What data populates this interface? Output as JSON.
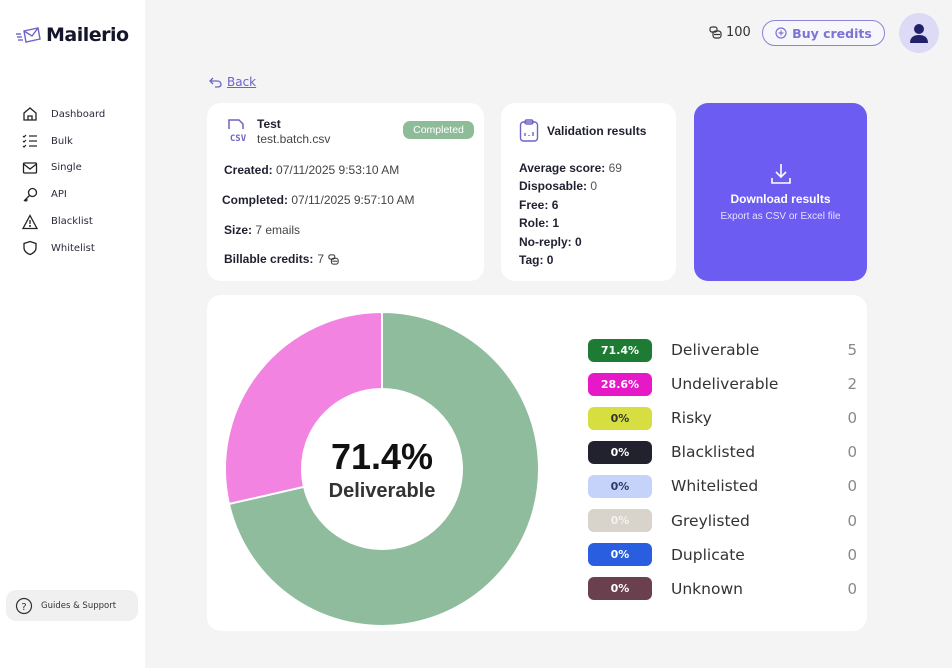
{
  "app": {
    "name": "Mailerio",
    "logo_icon": "envelope-speed-icon"
  },
  "sidebar": {
    "items": [
      {
        "label": "Dashboard",
        "icon": "home-icon"
      },
      {
        "label": "Bulk",
        "icon": "checklist-icon"
      },
      {
        "label": "Single",
        "icon": "mail-icon"
      },
      {
        "label": "API",
        "icon": "key-icon"
      },
      {
        "label": "Blacklist",
        "icon": "warning-icon"
      },
      {
        "label": "Whitelist",
        "icon": "shield-icon"
      }
    ],
    "support": {
      "label": "Guides & Support",
      "icon": "help-circle-icon"
    }
  },
  "topbar": {
    "credits": "100",
    "credits_icon": "coins-icon",
    "buy_label": "Buy credits",
    "buy_icon": "plus-circle-icon",
    "avatar_icon": "user-icon"
  },
  "back": {
    "label": "Back",
    "icon": "undo-arrow-icon"
  },
  "batch": {
    "title": "Test",
    "file": "test.batch.csv",
    "file_icon": "csv-file-icon",
    "status": "Completed",
    "created_label": "Created:",
    "created": "07/11/2025 9:53:10 AM",
    "completed_label": "Completed:",
    "completed": "07/11/2025 9:57:10 AM",
    "size_label": "Size:",
    "size": "7 emails",
    "billable_label": "Billable credits:",
    "billable": "7"
  },
  "validation": {
    "title": "Validation results",
    "icon": "clipboard-chart-icon",
    "rows": [
      {
        "label": "Average score:",
        "value": "69"
      },
      {
        "label": "Disposable:",
        "value": "0"
      },
      {
        "label": "Free:",
        "value": "6"
      },
      {
        "label": "Role:",
        "value": "1"
      },
      {
        "label": "No-reply:",
        "value": "0"
      },
      {
        "label": "Tag:",
        "value": "0"
      }
    ]
  },
  "download": {
    "title": "Download results",
    "subtitle": "Export as CSV or Excel file",
    "icon": "download-icon",
    "bg": "#6c5cf2"
  },
  "summary": {
    "center_pct": "71.4%",
    "center_label": "Deliverable",
    "legend": [
      {
        "pct": "71.4%",
        "name": "Deliverable",
        "count": "5",
        "color": "#1e7b34",
        "text": "#ffffff"
      },
      {
        "pct": "28.6%",
        "name": "Undeliverable",
        "count": "2",
        "color": "#e618c8",
        "text": "#ffffff"
      },
      {
        "pct": "0%",
        "name": "Risky",
        "count": "0",
        "color": "#d6de40",
        "text": "#333333"
      },
      {
        "pct": "0%",
        "name": "Blacklisted",
        "count": "0",
        "color": "#22222e",
        "text": "#ffffff"
      },
      {
        "pct": "0%",
        "name": "Whitelisted",
        "count": "0",
        "color": "#c5d3fa",
        "text": "#2a3a6a"
      },
      {
        "pct": "0%",
        "name": "Greylisted",
        "count": "0",
        "color": "#d8d4cc",
        "text": "#f4f2ee"
      },
      {
        "pct": "0%",
        "name": "Duplicate",
        "count": "0",
        "color": "#2a5ee0",
        "text": "#ffffff"
      },
      {
        "pct": "0%",
        "name": "Unknown",
        "count": "0",
        "color": "#6a3f4e",
        "text": "#ffffff"
      }
    ]
  },
  "chart_data": {
    "type": "pie",
    "title": "71.4% Deliverable",
    "categories": [
      "Deliverable",
      "Undeliverable",
      "Risky",
      "Blacklisted",
      "Whitelisted",
      "Greylisted",
      "Duplicate",
      "Unknown"
    ],
    "values": [
      5,
      2,
      0,
      0,
      0,
      0,
      0,
      0
    ],
    "percentages": [
      71.4,
      28.6,
      0,
      0,
      0,
      0,
      0,
      0
    ],
    "slice_colors": [
      "#8ebc9c",
      "#f283e0"
    ],
    "donut": true,
    "legend_position": "right"
  }
}
